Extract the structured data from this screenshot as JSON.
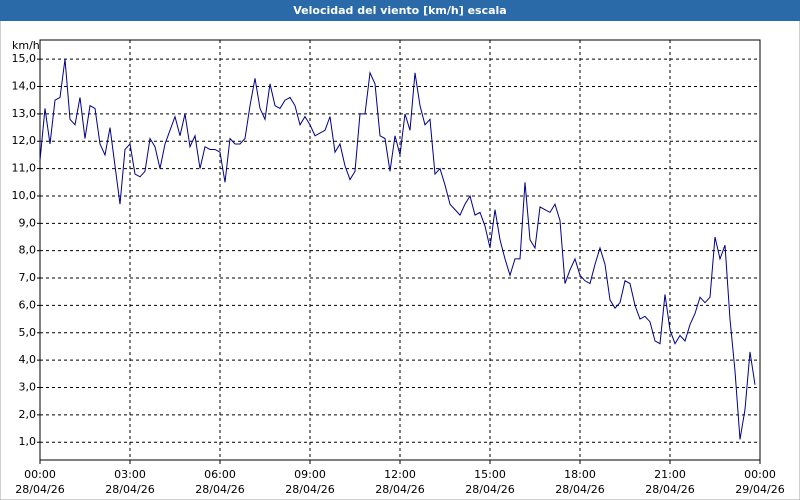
{
  "chart_data": {
    "type": "line",
    "title": "Velocidad del viento [km/h] escala",
    "y_unit": "km/h",
    "x": [
      0,
      10,
      20,
      30,
      40,
      50,
      60,
      70,
      80,
      90,
      100,
      110,
      120,
      130,
      140,
      150,
      160,
      170,
      180,
      190,
      200,
      210,
      220,
      230,
      240,
      250,
      260,
      270,
      280,
      290,
      300,
      310,
      320,
      330,
      340,
      350,
      360,
      370,
      380,
      390,
      400,
      410,
      420,
      430,
      440,
      450,
      460,
      470,
      480,
      490,
      500,
      510,
      520,
      530,
      540,
      550,
      560,
      570,
      580,
      590,
      600,
      610,
      620,
      630,
      640,
      650,
      660,
      670,
      680,
      690,
      700,
      710,
      720,
      730,
      740,
      750,
      760,
      770,
      780,
      790,
      800,
      810,
      820,
      830,
      840,
      850,
      860,
      870,
      880,
      890,
      900,
      910,
      920,
      930,
      940,
      950,
      960,
      970,
      980,
      990,
      1000,
      1010,
      1020,
      1030,
      1040,
      1050,
      1060,
      1070,
      1080,
      1090,
      1100,
      1110,
      1120,
      1130,
      1140,
      1150,
      1160,
      1170,
      1180,
      1190,
      1200,
      1210,
      1220,
      1230,
      1240,
      1250,
      1260,
      1270,
      1280,
      1290,
      1300,
      1310,
      1320,
      1330,
      1340,
      1350,
      1360,
      1370,
      1380,
      1390,
      1400,
      1410,
      1420,
      1430
    ],
    "series": [
      {
        "color": "#00008b",
        "values": [
          11.3,
          13.2,
          11.9,
          13.5,
          13.6,
          15.0,
          12.8,
          12.6,
          13.6,
          12.1,
          13.3,
          13.2,
          11.9,
          11.5,
          12.5,
          11.1,
          9.7,
          11.7,
          11.9,
          10.8,
          10.7,
          10.9,
          12.1,
          11.8,
          11.0,
          11.9,
          12.4,
          12.9,
          12.2,
          13.0,
          11.8,
          12.2,
          11.0,
          11.8,
          11.7,
          11.7,
          11.6,
          10.5,
          12.1,
          11.9,
          11.9,
          12.1,
          13.3,
          14.3,
          13.2,
          12.8,
          14.1,
          13.3,
          13.2,
          13.5,
          13.6,
          13.3,
          12.6,
          12.9,
          12.6,
          12.2,
          12.3,
          12.4,
          12.9,
          11.6,
          11.9,
          11.1,
          10.6,
          10.9,
          13.0,
          13.0,
          14.5,
          14.1,
          12.2,
          12.1,
          10.9,
          12.2,
          11.5,
          13.0,
          12.4,
          14.5,
          13.3,
          12.6,
          12.8,
          10.8,
          11.0,
          10.4,
          9.7,
          9.5,
          9.3,
          9.7,
          10.0,
          9.3,
          9.4,
          8.9,
          8.1,
          9.5,
          8.4,
          7.7,
          7.1,
          7.7,
          7.7,
          10.5,
          8.4,
          8.1,
          9.6,
          9.5,
          9.4,
          9.7,
          9.1,
          6.8,
          7.3,
          7.7,
          7.1,
          6.9,
          6.8,
          7.5,
          8.1,
          7.5,
          6.2,
          5.9,
          6.1,
          6.9,
          6.8,
          6.0,
          5.5,
          5.6,
          5.4,
          4.7,
          4.6,
          6.4,
          5.1,
          4.6,
          4.9,
          4.7,
          5.3,
          5.7,
          6.3,
          6.1,
          6.3,
          8.5,
          7.7,
          8.2,
          5.5,
          3.6,
          1.1,
          2.2,
          4.3,
          3.1
        ]
      }
    ],
    "xlim": [
      0,
      1440
    ],
    "xticks": [
      {
        "value": 0,
        "label": "00:00"
      },
      {
        "value": 180,
        "label": "03:00"
      },
      {
        "value": 360,
        "label": "06:00"
      },
      {
        "value": 540,
        "label": "09:00"
      },
      {
        "value": 720,
        "label": "12:00"
      },
      {
        "value": 900,
        "label": "15:00"
      },
      {
        "value": 1080,
        "label": "18:00"
      },
      {
        "value": 1260,
        "label": "21:00"
      },
      {
        "value": 1440,
        "label": "00:00"
      }
    ],
    "xtick_dates": [
      "28/04/26",
      "28/04/26",
      "28/04/26",
      "28/04/26",
      "28/04/26",
      "28/04/26",
      "28/04/26",
      "28/04/26",
      "29/04/26"
    ],
    "ylim": [
      0.35,
      15.7
    ],
    "yticks": [
      {
        "value": 1,
        "label": "1,0"
      },
      {
        "value": 2,
        "label": "2,0"
      },
      {
        "value": 3,
        "label": "3,0"
      },
      {
        "value": 4,
        "label": "4,0"
      },
      {
        "value": 5,
        "label": "5,0"
      },
      {
        "value": 6,
        "label": "6,0"
      },
      {
        "value": 7,
        "label": "7,0"
      },
      {
        "value": 8,
        "label": "8,0"
      },
      {
        "value": 9,
        "label": "9,0"
      },
      {
        "value": 10,
        "label": "10,0"
      },
      {
        "value": 11,
        "label": "11,0"
      },
      {
        "value": 12,
        "label": "12,0"
      },
      {
        "value": 13,
        "label": "13,0"
      },
      {
        "value": 14,
        "label": "14,0"
      },
      {
        "value": 15,
        "label": "15,0"
      }
    ],
    "grid": true
  }
}
